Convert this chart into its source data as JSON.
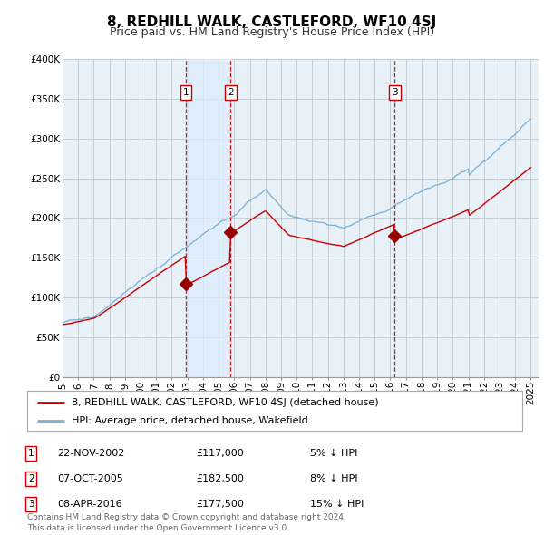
{
  "title": "8, REDHILL WALK, CASTLEFORD, WF10 4SJ",
  "subtitle": "Price paid vs. HM Land Registry's House Price Index (HPI)",
  "xlim": [
    1995,
    2025.5
  ],
  "ylim": [
    0,
    400000
  ],
  "yticks": [
    0,
    50000,
    100000,
    150000,
    200000,
    250000,
    300000,
    350000,
    400000
  ],
  "ytick_labels": [
    "£0",
    "£50K",
    "£100K",
    "£150K",
    "£200K",
    "£250K",
    "£300K",
    "£350K",
    "£400K"
  ],
  "xticks": [
    1995,
    1996,
    1997,
    1998,
    1999,
    2000,
    2001,
    2002,
    2003,
    2004,
    2005,
    2006,
    2007,
    2008,
    2009,
    2010,
    2011,
    2012,
    2013,
    2014,
    2015,
    2016,
    2017,
    2018,
    2019,
    2020,
    2021,
    2022,
    2023,
    2024,
    2025
  ],
  "red_line_color": "#cc0000",
  "blue_line_color": "#7ab0d4",
  "shade_color": "#ddeeff",
  "sale_marker_color": "#990000",
  "vline_color": "#cc0000",
  "background_color": "#ffffff",
  "chart_bg_color": "#e8f0f8",
  "grid_color": "#c0c8d0",
  "sales": [
    {
      "year": 2002.9,
      "price": 117000,
      "label": "1",
      "hpi_diff": "5% ↓ HPI",
      "date": "22-NOV-2002",
      "price_str": "£117,000"
    },
    {
      "year": 2005.77,
      "price": 182500,
      "label": "2",
      "hpi_diff": "8% ↓ HPI",
      "date": "07-OCT-2005",
      "price_str": "£182,500"
    },
    {
      "year": 2016.27,
      "price": 177500,
      "label": "3",
      "hpi_diff": "15% ↓ HPI",
      "date": "08-APR-2016",
      "price_str": "£177,500"
    }
  ],
  "legend_property_label": "8, REDHILL WALK, CASTLEFORD, WF10 4SJ (detached house)",
  "legend_hpi_label": "HPI: Average price, detached house, Wakefield",
  "footnote": "Contains HM Land Registry data © Crown copyright and database right 2024.\nThis data is licensed under the Open Government Licence v3.0.",
  "title_fontsize": 11,
  "subtitle_fontsize": 9,
  "tick_fontsize": 7.5,
  "legend_fontsize": 8,
  "table_fontsize": 8,
  "footnote_fontsize": 6.5
}
